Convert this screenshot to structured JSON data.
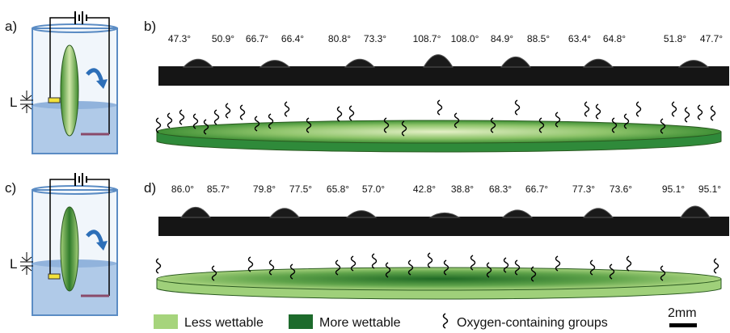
{
  "panel_a": {
    "label": "a)",
    "gap_label": "L"
  },
  "panel_b": {
    "label": "b)",
    "contact_angles": [
      "47.3°",
      "50.9°",
      "66.7°",
      "66.4°",
      "80.8°",
      "73.3°",
      "108.7°",
      "108.0°",
      "84.9°",
      "88.5°",
      "63.4°",
      "64.8°",
      "51.8°",
      "47.7°"
    ]
  },
  "panel_c": {
    "label": "c)",
    "gap_label": "L"
  },
  "panel_d": {
    "label": "d)",
    "contact_angles": [
      "86.0°",
      "85.7°",
      "79.8°",
      "77.5°",
      "65.8°",
      "57.0°",
      "42.8°",
      "38.8°",
      "68.3°",
      "66.7°",
      "77.3°",
      "73.6°",
      "95.1°",
      "95.1°"
    ]
  },
  "legend": [
    {
      "label": "Less wettable"
    },
    {
      "label": "More wettable"
    },
    {
      "label": "Oxygen-containing groups"
    }
  ],
  "scale_bar": "2mm"
}
